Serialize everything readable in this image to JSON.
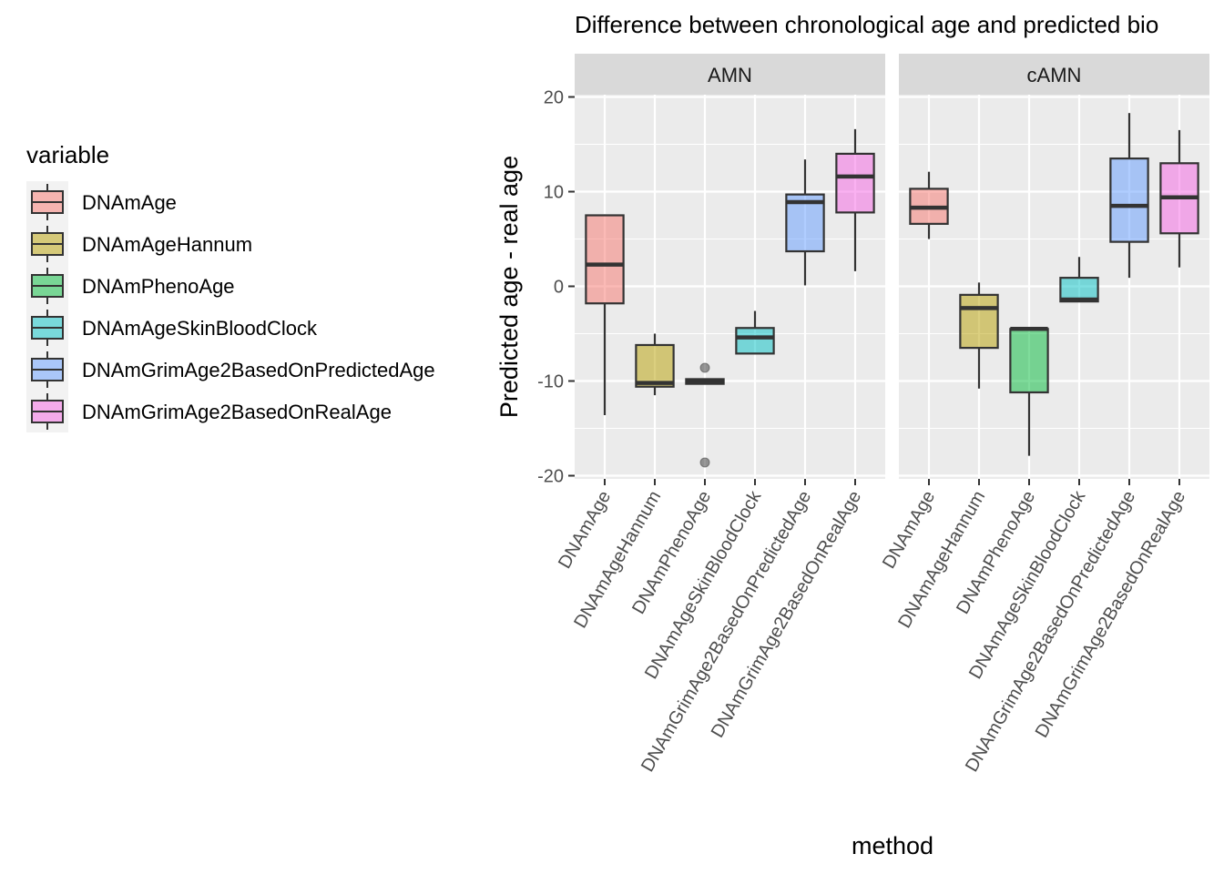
{
  "chart_data": {
    "type": "boxplot",
    "title": "Difference between chronological age and predicted bio",
    "xlabel": "method",
    "ylabel": "Predicted age - real age",
    "ylim": [
      -20,
      20
    ],
    "yticks": [
      -20,
      -10,
      0,
      10,
      20
    ],
    "grid": true,
    "legend": {
      "title": "variable",
      "position": "left",
      "entries": [
        {
          "name": "DNAmAge",
          "color": "#F8766D"
        },
        {
          "name": "DNAmAgeHannum",
          "color": "#B79F00"
        },
        {
          "name": "DNAmPhenoAge",
          "color": "#00BA38"
        },
        {
          "name": "DNAmAgeSkinBloodClock",
          "color": "#00BFC4"
        },
        {
          "name": "DNAmGrimAge2BasedOnPredictedAge",
          "color": "#619CFF"
        },
        {
          "name": "DNAmGrimAge2BasedOnRealAge",
          "color": "#F564E3"
        }
      ]
    },
    "categories": [
      "DNAmAge",
      "DNAmAgeHannum",
      "DNAmPhenoAge",
      "DNAmAgeSkinBloodClock",
      "DNAmGrimAge2BasedOnPredictedAge",
      "DNAmGrimAge2BasedOnRealAge"
    ],
    "panels": [
      {
        "label": "AMN",
        "boxes": [
          {
            "category": "DNAmAge",
            "min": -13.6,
            "q1": -1.8,
            "median": 2.3,
            "q3": 7.5,
            "max": 7.6,
            "outliers": []
          },
          {
            "category": "DNAmAgeHannum",
            "min": -11.5,
            "q1": -10.6,
            "median": -10.2,
            "q3": -6.2,
            "max": -5.0,
            "outliers": []
          },
          {
            "category": "DNAmPhenoAge",
            "min": -10.3,
            "q1": -10.3,
            "median": -10.0,
            "q3": -9.8,
            "max": -9.8,
            "outliers": [
              -8.6,
              -18.6
            ]
          },
          {
            "category": "DNAmAgeSkinBloodClock",
            "min": -7.1,
            "q1": -7.1,
            "median": -5.4,
            "q3": -4.4,
            "max": -2.6,
            "outliers": []
          },
          {
            "category": "DNAmGrimAge2BasedOnPredictedAge",
            "min": 0.1,
            "q1": 3.7,
            "median": 8.9,
            "q3": 9.7,
            "max": 13.4,
            "outliers": []
          },
          {
            "category": "DNAmGrimAge2BasedOnRealAge",
            "min": 1.6,
            "q1": 7.8,
            "median": 11.6,
            "q3": 14.0,
            "max": 16.6,
            "outliers": []
          }
        ]
      },
      {
        "label": "cAMN",
        "boxes": [
          {
            "category": "DNAmAge",
            "min": 5.0,
            "q1": 6.6,
            "median": 8.3,
            "q3": 10.3,
            "max": 12.1,
            "outliers": []
          },
          {
            "category": "DNAmAgeHannum",
            "min": -10.8,
            "q1": -6.5,
            "median": -2.3,
            "q3": -0.9,
            "max": 0.4,
            "outliers": []
          },
          {
            "category": "DNAmPhenoAge",
            "min": -17.9,
            "q1": -11.2,
            "median": -4.5,
            "q3": -4.5,
            "max": -4.5,
            "outliers": []
          },
          {
            "category": "DNAmAgeSkinBloodClock",
            "min": -1.6,
            "q1": -1.6,
            "median": -1.4,
            "q3": 0.9,
            "max": 3.1,
            "outliers": []
          },
          {
            "category": "DNAmGrimAge2BasedOnPredictedAge",
            "min": 0.9,
            "q1": 4.7,
            "median": 8.5,
            "q3": 13.5,
            "max": 18.3,
            "outliers": []
          },
          {
            "category": "DNAmGrimAge2BasedOnRealAge",
            "min": 2.0,
            "q1": 5.6,
            "median": 9.4,
            "q3": 13.0,
            "max": 16.5,
            "outliers": []
          }
        ]
      }
    ]
  }
}
